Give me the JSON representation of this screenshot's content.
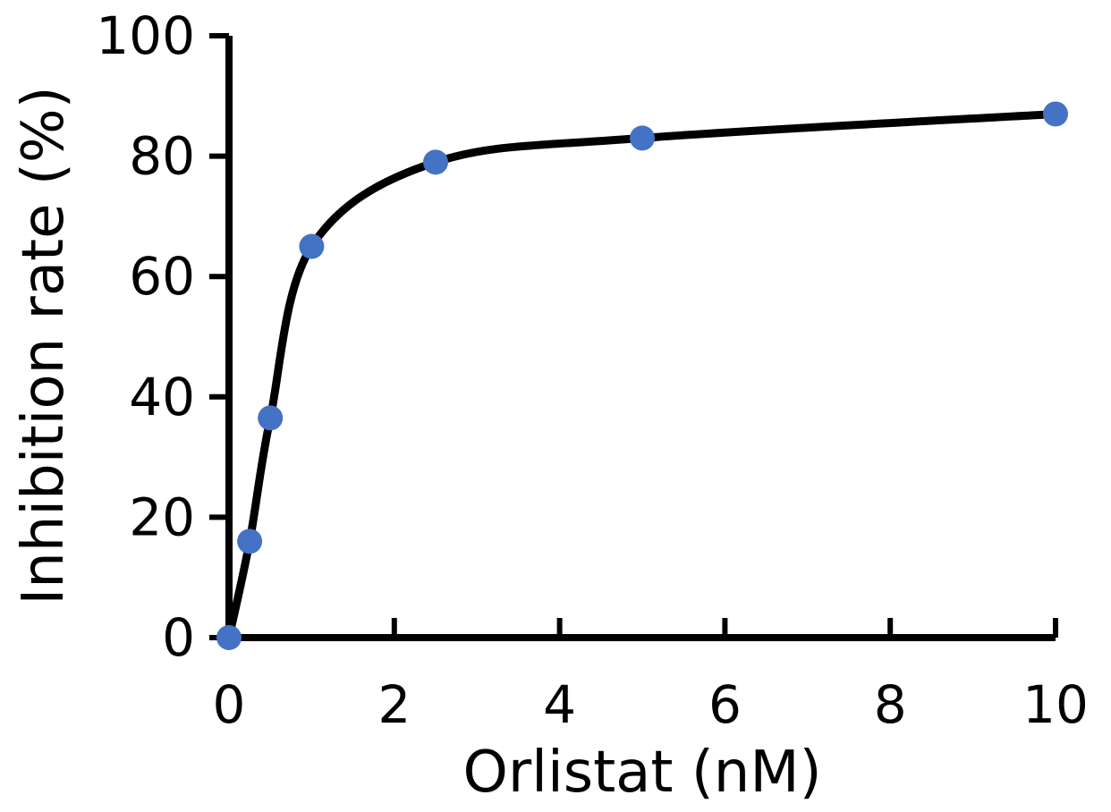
{
  "chart_data": {
    "type": "line",
    "title": "",
    "xlabel": "Orlistat (nM)",
    "ylabel": "Inhibition rate (%)",
    "xlim": [
      0,
      10
    ],
    "ylim": [
      0,
      100
    ],
    "x_ticks": [
      0,
      2,
      4,
      6,
      8,
      10
    ],
    "y_ticks": [
      0,
      20,
      40,
      60,
      80,
      100
    ],
    "grid": false,
    "legend": "none",
    "series": [
      {
        "x": [
          0,
          0.25,
          0.5,
          1,
          2.5,
          5,
          10
        ],
        "values": [
          0,
          16,
          36.5,
          65,
          79,
          83,
          87
        ],
        "marker_color": "#4472C4",
        "line_color": "#000000"
      }
    ],
    "curve_style": "smooth fitted line through markers"
  }
}
